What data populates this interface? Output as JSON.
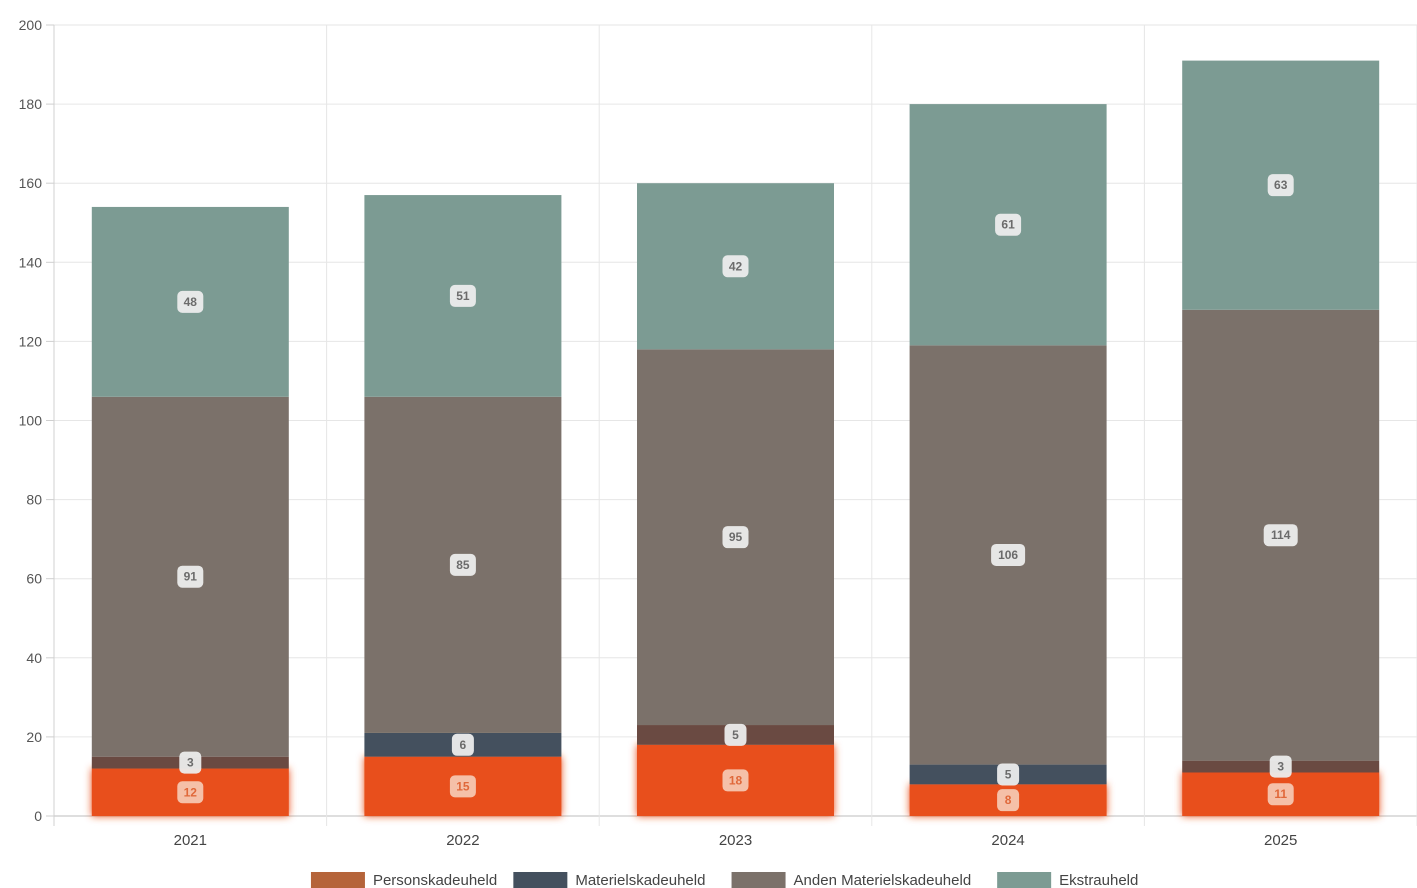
{
  "chart_data": {
    "type": "bar",
    "stacked": true,
    "categories": [
      "2021",
      "2022",
      "2023",
      "2024",
      "2025"
    ],
    "series": [
      {
        "name": "Personskadeuheld",
        "values": [
          12,
          15,
          18,
          8,
          11
        ],
        "color": "#e8501e",
        "legend_color": "#b5643a"
      },
      {
        "name": "Materielskadeuheld",
        "values": [
          3,
          6,
          5,
          5,
          3
        ],
        "color": "#44505e",
        "legend_color": "#44505e"
      },
      {
        "name": "Anden Materielskadeuheld",
        "values": [
          91,
          85,
          95,
          106,
          114
        ],
        "color": "#7b716a",
        "legend_color": "#7b716a"
      },
      {
        "name": "Ekstrauheld",
        "values": [
          48,
          51,
          42,
          61,
          63
        ],
        "color": "#7c9b93",
        "legend_color": "#7c9b93"
      }
    ],
    "series_colors_per_bar": {
      "Materielskadeuheld": [
        "#6a4a42",
        "#44505e",
        "#6a4a42",
        "#44505e",
        "#6a4a42"
      ]
    },
    "ylim": [
      0,
      200
    ],
    "yticks": [
      "0",
      "20",
      "40",
      "60",
      "80",
      "100",
      "120",
      "140",
      "160",
      "180",
      "200"
    ],
    "grid": true,
    "legend_position": "bottom"
  }
}
